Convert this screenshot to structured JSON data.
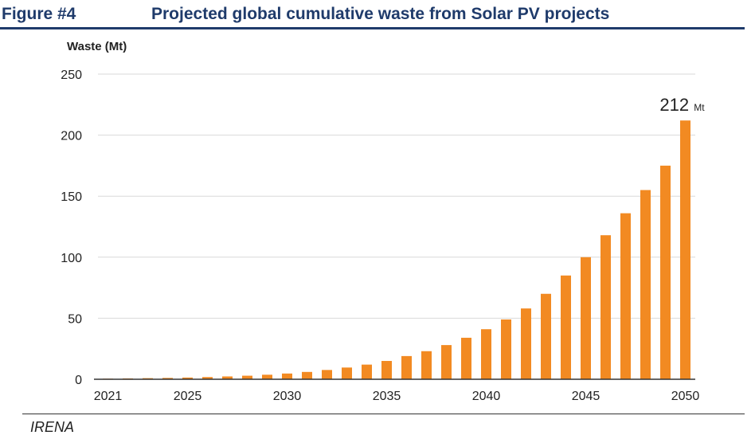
{
  "figure": {
    "label": "Figure #4",
    "title": "Projected global cumulative waste from Solar PV projects",
    "source": "IRENA"
  },
  "colors": {
    "bar": "#f28a22",
    "title": "#1f3b6b",
    "grid": "#d9d9d9",
    "axis": "#333333"
  },
  "chart_data": {
    "type": "bar",
    "title": "",
    "xlabel": "",
    "ylabel": "Waste (Mt)",
    "ylim": [
      0,
      250
    ],
    "yticks": [
      0,
      50,
      100,
      150,
      200,
      250
    ],
    "categories": [
      2021,
      2022,
      2023,
      2024,
      2025,
      2026,
      2027,
      2028,
      2029,
      2030,
      2031,
      2032,
      2033,
      2034,
      2035,
      2036,
      2037,
      2038,
      2039,
      2040,
      2041,
      2042,
      2043,
      2044,
      2045,
      2046,
      2047,
      2048,
      2049,
      2050
    ],
    "xtick_labels": [
      "2021",
      "2025",
      "2030",
      "2035",
      "2040",
      "2045",
      "2050"
    ],
    "values": [
      0.5,
      0.7,
      0.9,
      1.1,
      1.4,
      1.8,
      2.3,
      2.9,
      3.7,
      4.7,
      6,
      7.6,
      9.6,
      12,
      15,
      19,
      23,
      28,
      34,
      41,
      49,
      58,
      70,
      85,
      100,
      118,
      136,
      155,
      175,
      212
    ],
    "grid": true,
    "annotation": {
      "value": "212",
      "unit": "Mt"
    }
  }
}
